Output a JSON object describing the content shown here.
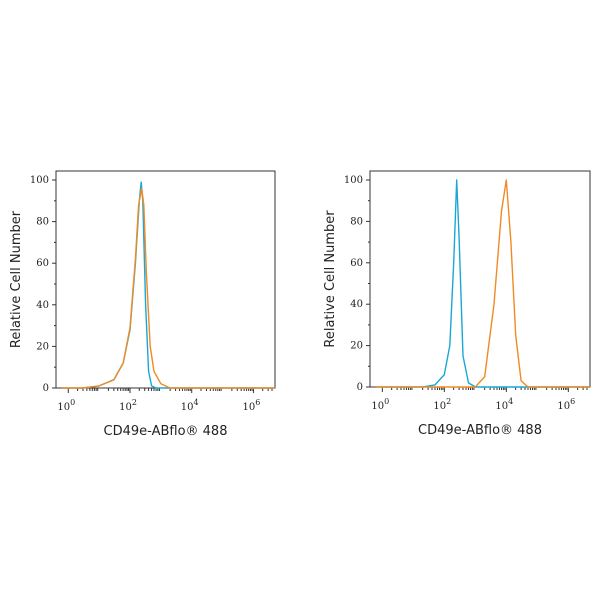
{
  "chart_data": [
    {
      "type": "line",
      "xlabel": "CD49e-ABflo® 488",
      "ylabel": "Relative Cell Number",
      "xscale": "log",
      "xlim": [
        0.4,
        5000000
      ],
      "ylim": [
        0,
        100
      ],
      "xticks": [
        "10^0",
        "10^2",
        "10^4",
        "10^6"
      ],
      "yticks": [
        0,
        20,
        40,
        60,
        80,
        100
      ],
      "grid": false,
      "series": [
        {
          "color": "#1aa7d6",
          "points": [
            [
              0.6,
              0
            ],
            [
              3,
              0
            ],
            [
              10,
              1
            ],
            [
              30,
              4
            ],
            [
              60,
              12
            ],
            [
              100,
              28
            ],
            [
              150,
              60
            ],
            [
              200,
              90
            ],
            [
              230,
              99
            ],
            [
              260,
              90
            ],
            [
              320,
              40
            ],
            [
              400,
              8
            ],
            [
              500,
              1
            ],
            [
              700,
              0
            ],
            [
              5000000,
              0
            ]
          ]
        },
        {
          "color": "#f08a24",
          "points": [
            [
              0.6,
              0
            ],
            [
              3,
              0
            ],
            [
              10,
              1
            ],
            [
              30,
              4
            ],
            [
              60,
              12
            ],
            [
              100,
              29
            ],
            [
              150,
              62
            ],
            [
              190,
              88
            ],
            [
              240,
              96
            ],
            [
              280,
              88
            ],
            [
              340,
              55
            ],
            [
              450,
              20
            ],
            [
              600,
              8
            ],
            [
              1000,
              2
            ],
            [
              2000,
              0
            ],
            [
              5000000,
              0
            ]
          ]
        }
      ]
    },
    {
      "type": "line",
      "xlabel": "CD49e-ABflo® 488",
      "ylabel": "Relative Cell Number",
      "xscale": "log",
      "xlim": [
        0.4,
        5000000
      ],
      "ylim": [
        0,
        100
      ],
      "xticks": [
        "10^0",
        "10^2",
        "10^4",
        "10^6"
      ],
      "yticks": [
        0,
        20,
        40,
        60,
        80,
        100
      ],
      "grid": false,
      "series": [
        {
          "color": "#1aa7d6",
          "points": [
            [
              0.6,
              0
            ],
            [
              20,
              0
            ],
            [
              50,
              1
            ],
            [
              100,
              6
            ],
            [
              150,
              20
            ],
            [
              200,
              60
            ],
            [
              250,
              100
            ],
            [
              300,
              72
            ],
            [
              400,
              15
            ],
            [
              600,
              2
            ],
            [
              1000,
              0
            ],
            [
              5000000,
              0
            ]
          ]
        },
        {
          "color": "#f08a24",
          "points": [
            [
              0.6,
              0
            ],
            [
              1000,
              0
            ],
            [
              2000,
              5
            ],
            [
              4000,
              40
            ],
            [
              7000,
              85
            ],
            [
              10000,
              100
            ],
            [
              14000,
              70
            ],
            [
              20000,
              25
            ],
            [
              30000,
              3
            ],
            [
              50000,
              0
            ],
            [
              5000000,
              0
            ]
          ]
        }
      ]
    }
  ]
}
